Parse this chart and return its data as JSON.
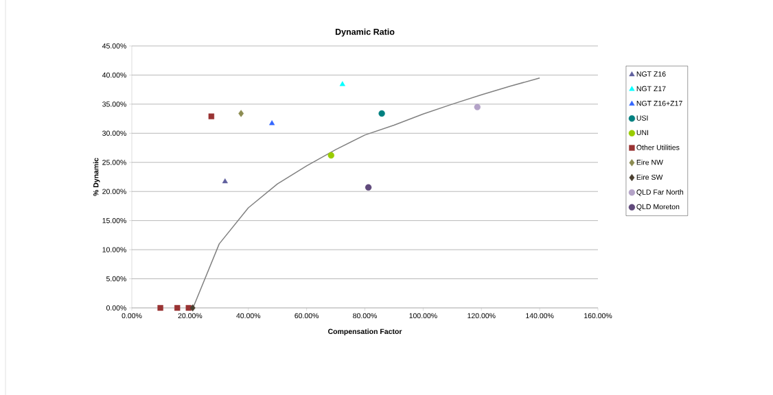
{
  "chart_data": {
    "type": "scatter",
    "title": "Dynamic Ratio",
    "xlabel": "Compensation Factor",
    "ylabel": "% Dynamic",
    "xlim": [
      0,
      160
    ],
    "ylim": [
      0,
      45
    ],
    "xticks": [
      {
        "value": 0,
        "label": "0.00%"
      },
      {
        "value": 20,
        "label": "20.00%"
      },
      {
        "value": 40,
        "label": "40.00%"
      },
      {
        "value": 60,
        "label": "60.00%"
      },
      {
        "value": 80,
        "label": "80.00%"
      },
      {
        "value": 100,
        "label": "100.00%"
      },
      {
        "value": 120,
        "label": "120.00%"
      },
      {
        "value": 140,
        "label": "140.00%"
      },
      {
        "value": 160,
        "label": "160.00%"
      }
    ],
    "yticks": [
      {
        "value": 0,
        "label": "0.00%"
      },
      {
        "value": 5,
        "label": "5.00%"
      },
      {
        "value": 10,
        "label": "10.00%"
      },
      {
        "value": 15,
        "label": "15.00%"
      },
      {
        "value": 20,
        "label": "20.00%"
      },
      {
        "value": 25,
        "label": "25.00%"
      },
      {
        "value": 30,
        "label": "30.00%"
      },
      {
        "value": 35,
        "label": "35.00%"
      },
      {
        "value": 40,
        "label": "40.00%"
      },
      {
        "value": 45,
        "label": "45.00%"
      }
    ],
    "grid": "y",
    "legend": "right",
    "series": [
      {
        "name": "NGT Z16",
        "color": "#60609e",
        "marker": "triangle",
        "x": [
          32.0
        ],
        "values": [
          21.7
        ]
      },
      {
        "name": "NGT Z17",
        "color": "#00ffff",
        "marker": "triangle",
        "x": [
          72.3
        ],
        "values": [
          38.4
        ]
      },
      {
        "name": "NGT Z16+Z17",
        "color": "#3366ff",
        "marker": "triangle",
        "x": [
          48.1
        ],
        "values": [
          31.7
        ]
      },
      {
        "name": "USI",
        "color": "#008080",
        "marker": "circle",
        "x": [
          85.8
        ],
        "values": [
          33.4
        ]
      },
      {
        "name": "UNI",
        "color": "#99cc00",
        "marker": "circle",
        "x": [
          68.4
        ],
        "values": [
          26.2
        ]
      },
      {
        "name": "Other Utilities",
        "color": "#993333",
        "marker": "square",
        "x": [
          27.3,
          9.8,
          15.6,
          19.5
        ],
        "values": [
          32.9,
          0,
          0,
          0
        ]
      },
      {
        "name": "Eire NW",
        "color": "#8c8c52",
        "marker": "diamond",
        "x": [
          37.5
        ],
        "values": [
          33.4
        ]
      },
      {
        "name": "Eire SW",
        "color": "#4a4030",
        "marker": "diamond",
        "x": [
          20.9
        ],
        "values": [
          0
        ]
      },
      {
        "name": "QLD Far North",
        "color": "#b3a2c7",
        "marker": "circle",
        "x": [
          118.6
        ],
        "values": [
          34.5
        ]
      },
      {
        "name": "QLD Moreton",
        "color": "#604a7b",
        "marker": "circle",
        "x": [
          81.2
        ],
        "values": [
          20.7
        ]
      },
      {
        "type": "line",
        "color": "#808080",
        "marker": "none",
        "line_style": "solid",
        "x": [
          21,
          30,
          40,
          50,
          60,
          70,
          80,
          90,
          100,
          110,
          120,
          130,
          140
        ],
        "values": [
          0,
          11.0,
          17.2,
          21.3,
          24.4,
          27.2,
          29.7,
          31.4,
          33.3,
          35.0,
          36.6,
          38.1,
          39.5
        ]
      }
    ]
  }
}
